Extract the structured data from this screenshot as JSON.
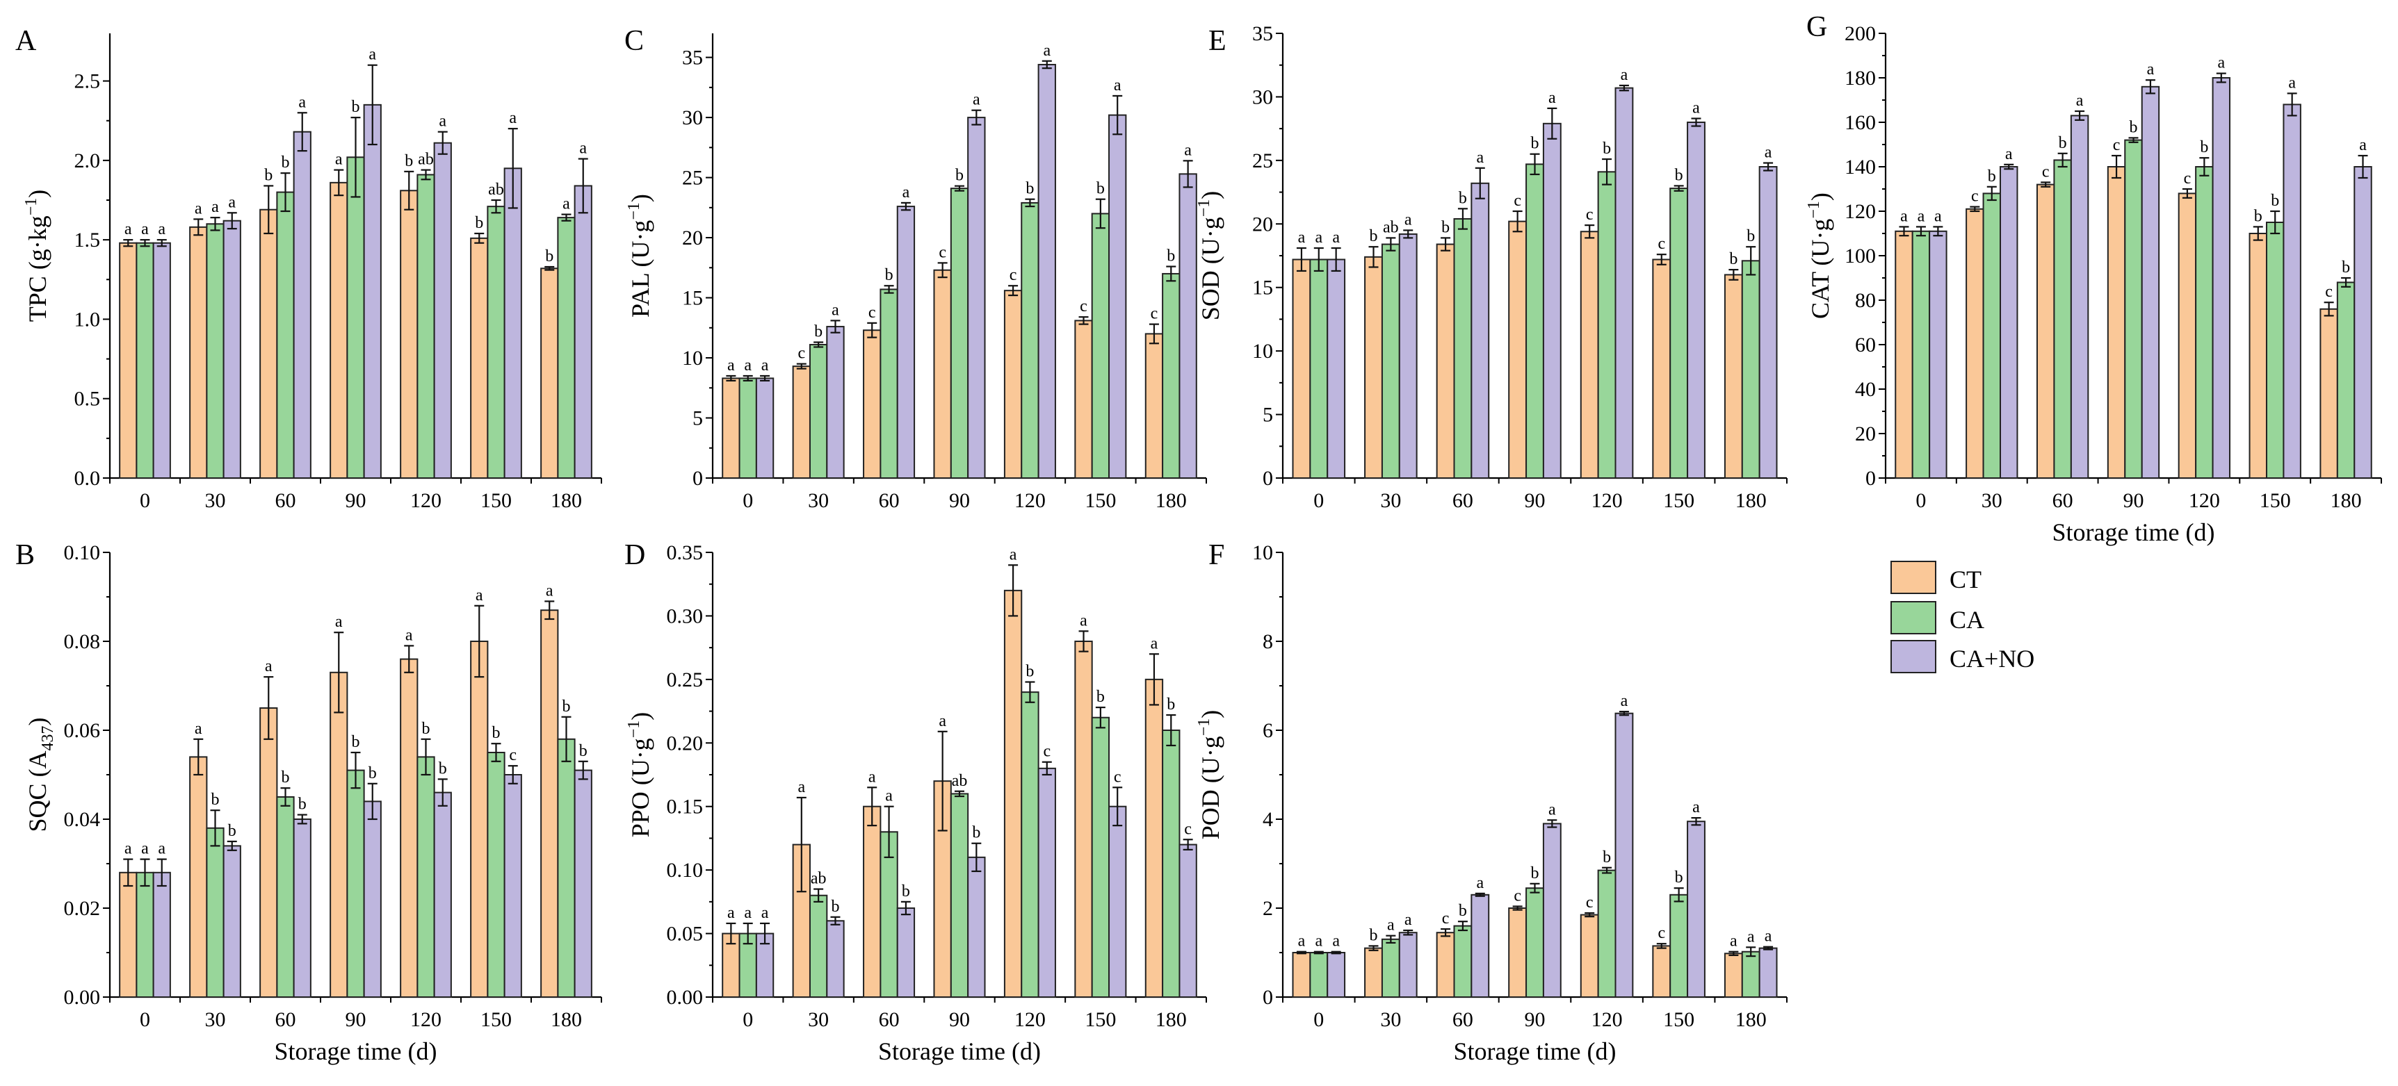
{
  "colors": {
    "CT": "#FAC898",
    "CA": "#98D69A",
    "CA+NO": "#BEB6DE"
  },
  "legend": [
    "CT",
    "CA",
    "CA+NO"
  ],
  "chart_data": [
    {
      "type": "bar",
      "panel": "A",
      "ylabel_main": "TPC (g·kg",
      "ylabel_sup": "−1",
      "ylabel_end": ")",
      "xlabel": "",
      "ylim": [
        0,
        2.8
      ],
      "yticks": [
        0.0,
        0.5,
        1.0,
        1.5,
        2.0,
        2.5
      ],
      "yticklabels": [
        "0.0",
        "0.5",
        "1.0",
        "1.5",
        "2.0",
        "2.5"
      ],
      "categories": [
        "0",
        "30",
        "60",
        "90",
        "120",
        "150",
        "180"
      ],
      "series": [
        {
          "name": "CT",
          "values": [
            1.48,
            1.58,
            1.69,
            1.86,
            1.81,
            1.51,
            1.32
          ],
          "errors": [
            0.02,
            0.05,
            0.15,
            0.08,
            0.12,
            0.03,
            0.01
          ],
          "sig": [
            "a",
            "a",
            "b",
            "a",
            "b",
            "b",
            "b"
          ]
        },
        {
          "name": "CA",
          "values": [
            1.48,
            1.6,
            1.8,
            2.02,
            1.91,
            1.71,
            1.64
          ],
          "errors": [
            0.02,
            0.04,
            0.12,
            0.25,
            0.03,
            0.04,
            0.02
          ],
          "sig": [
            "a",
            "a",
            "b",
            "b",
            "ab",
            "ab",
            "a"
          ]
        },
        {
          "name": "CA+NO",
          "values": [
            1.48,
            1.62,
            2.18,
            2.35,
            2.11,
            1.95,
            1.84
          ],
          "errors": [
            0.02,
            0.05,
            0.12,
            0.25,
            0.07,
            0.25,
            0.17
          ],
          "sig": [
            "a",
            "a",
            "a",
            "a",
            "a",
            "a",
            "a"
          ]
        }
      ]
    },
    {
      "type": "bar",
      "panel": "C",
      "ylabel_main": "PAL (U·g",
      "ylabel_sup": "−1",
      "ylabel_end": ")",
      "xlabel": "",
      "ylim": [
        0,
        37
      ],
      "yticks": [
        0,
        5,
        10,
        15,
        20,
        25,
        30,
        35
      ],
      "yticklabels": [
        "0",
        "5",
        "10",
        "15",
        "20",
        "25",
        "30",
        "35"
      ],
      "categories": [
        "0",
        "30",
        "60",
        "90",
        "120",
        "150",
        "180"
      ],
      "series": [
        {
          "name": "CT",
          "values": [
            8.3,
            9.3,
            12.3,
            17.3,
            15.6,
            13.1,
            12.0
          ],
          "errors": [
            0.2,
            0.2,
            0.6,
            0.6,
            0.4,
            0.3,
            0.8
          ],
          "sig": [
            "a",
            "c",
            "c",
            "c",
            "c",
            "c",
            "c"
          ]
        },
        {
          "name": "CA",
          "values": [
            8.3,
            11.1,
            15.7,
            24.1,
            22.9,
            22.0,
            17.0
          ],
          "errors": [
            0.2,
            0.2,
            0.3,
            0.2,
            0.3,
            1.2,
            0.6
          ],
          "sig": [
            "a",
            "b",
            "b",
            "b",
            "b",
            "b",
            "b"
          ]
        },
        {
          "name": "CA+NO",
          "values": [
            8.3,
            12.6,
            22.6,
            30.0,
            34.4,
            30.2,
            25.3
          ],
          "errors": [
            0.2,
            0.5,
            0.3,
            0.6,
            0.3,
            1.6,
            1.1
          ],
          "sig": [
            "a",
            "a",
            "a",
            "a",
            "a",
            "a",
            "a"
          ]
        }
      ]
    },
    {
      "type": "bar",
      "panel": "E",
      "ylabel_main": "SOD (U·g",
      "ylabel_sup": "−1",
      "ylabel_end": ")",
      "xlabel": "",
      "ylim": [
        0,
        35
      ],
      "yticks": [
        0,
        5,
        10,
        15,
        20,
        25,
        30,
        35
      ],
      "yticklabels": [
        "0",
        "5",
        "10",
        "15",
        "20",
        "25",
        "30",
        "35"
      ],
      "categories": [
        "0",
        "30",
        "60",
        "90",
        "120",
        "150",
        "180"
      ],
      "series": [
        {
          "name": "CT",
          "values": [
            17.2,
            17.4,
            18.4,
            20.2,
            19.4,
            17.2,
            16.0
          ],
          "errors": [
            0.9,
            0.8,
            0.5,
            0.8,
            0.5,
            0.4,
            0.4
          ],
          "sig": [
            "a",
            "b",
            "b",
            "c",
            "c",
            "c",
            "b"
          ]
        },
        {
          "name": "CA",
          "values": [
            17.2,
            18.4,
            20.4,
            24.7,
            24.1,
            22.8,
            17.1
          ],
          "errors": [
            0.9,
            0.5,
            0.8,
            0.8,
            1.0,
            0.2,
            1.1
          ],
          "sig": [
            "a",
            "ab",
            "b",
            "b",
            "b",
            "b",
            "b"
          ]
        },
        {
          "name": "CA+NO",
          "values": [
            17.2,
            19.2,
            23.2,
            27.9,
            30.7,
            28.0,
            24.5
          ],
          "errors": [
            0.9,
            0.3,
            1.2,
            1.2,
            0.2,
            0.3,
            0.3
          ],
          "sig": [
            "a",
            "a",
            "a",
            "a",
            "a",
            "a",
            "a"
          ]
        }
      ]
    },
    {
      "type": "bar",
      "panel": "G",
      "ylabel_main": "CAT (U·g",
      "ylabel_sup": "−1",
      "ylabel_end": ")",
      "xlabel": "Storage time (d)",
      "ylim": [
        0,
        200
      ],
      "yticks": [
        0,
        20,
        40,
        60,
        80,
        100,
        120,
        140,
        160,
        180,
        200
      ],
      "yticklabels": [
        "0",
        "20",
        "40",
        "60",
        "80",
        "100",
        "120",
        "140",
        "160",
        "180",
        "200"
      ],
      "categories": [
        "0",
        "30",
        "60",
        "90",
        "120",
        "150",
        "180"
      ],
      "series": [
        {
          "name": "CT",
          "values": [
            111,
            121,
            132,
            140,
            128,
            110,
            76
          ],
          "errors": [
            2,
            1,
            1,
            5,
            2,
            3,
            3
          ],
          "sig": [
            "a",
            "c",
            "c",
            "c",
            "c",
            "b",
            "c"
          ]
        },
        {
          "name": "CA",
          "values": [
            111,
            128,
            143,
            152,
            140,
            115,
            88
          ],
          "errors": [
            2,
            3,
            3,
            1,
            4,
            5,
            2
          ],
          "sig": [
            "a",
            "b",
            "b",
            "b",
            "b",
            "b",
            "b"
          ]
        },
        {
          "name": "CA+NO",
          "values": [
            111,
            140,
            163,
            176,
            180,
            168,
            140
          ],
          "errors": [
            2,
            1,
            2,
            3,
            2,
            5,
            5
          ],
          "sig": [
            "a",
            "a",
            "a",
            "a",
            "a",
            "a",
            "a"
          ]
        }
      ]
    },
    {
      "type": "bar",
      "panel": "B",
      "ylabel_main": "SQC (A",
      "ylabel_sub": "437",
      "ylabel_end": ")",
      "xlabel": "Storage time (d)",
      "ylim": [
        0,
        0.1
      ],
      "yticks": [
        0.0,
        0.02,
        0.04,
        0.06,
        0.08,
        0.1
      ],
      "yticklabels": [
        "0.00",
        "0.02",
        "0.04",
        "0.06",
        "0.08",
        "0.10"
      ],
      "categories": [
        "0",
        "30",
        "60",
        "90",
        "120",
        "150",
        "180"
      ],
      "series": [
        {
          "name": "CT",
          "values": [
            0.028,
            0.054,
            0.065,
            0.073,
            0.076,
            0.08,
            0.087
          ],
          "errors": [
            0.003,
            0.004,
            0.007,
            0.009,
            0.003,
            0.008,
            0.002
          ],
          "sig": [
            "a",
            "a",
            "a",
            "a",
            "a",
            "a",
            "a"
          ]
        },
        {
          "name": "CA",
          "values": [
            0.028,
            0.038,
            0.045,
            0.051,
            0.054,
            0.055,
            0.058
          ],
          "errors": [
            0.003,
            0.004,
            0.002,
            0.004,
            0.004,
            0.002,
            0.005
          ],
          "sig": [
            "a",
            "b",
            "b",
            "b",
            "b",
            "b",
            "b"
          ]
        },
        {
          "name": "CA+NO",
          "values": [
            0.028,
            0.034,
            0.04,
            0.044,
            0.046,
            0.05,
            0.051
          ],
          "errors": [
            0.003,
            0.001,
            0.001,
            0.004,
            0.003,
            0.002,
            0.002
          ],
          "sig": [
            "a",
            "b",
            "b",
            "b",
            "b",
            "c",
            "b"
          ]
        }
      ]
    },
    {
      "type": "bar",
      "panel": "D",
      "ylabel_main": "PPO (U·g",
      "ylabel_sup": "−1",
      "ylabel_end": ")",
      "xlabel": "Storage time (d)",
      "ylim": [
        0,
        0.35
      ],
      "yticks": [
        0.0,
        0.05,
        0.1,
        0.15,
        0.2,
        0.25,
        0.3,
        0.35
      ],
      "yticklabels": [
        "0.00",
        "0.05",
        "0.10",
        "0.15",
        "0.20",
        "0.25",
        "0.30",
        "0.35"
      ],
      "categories": [
        "0",
        "30",
        "60",
        "90",
        "120",
        "150",
        "180"
      ],
      "series": [
        {
          "name": "CT",
          "values": [
            0.05,
            0.12,
            0.15,
            0.17,
            0.32,
            0.28,
            0.25
          ],
          "errors": [
            0.008,
            0.037,
            0.015,
            0.039,
            0.02,
            0.008,
            0.02
          ],
          "sig": [
            "a",
            "a",
            "a",
            "a",
            "a",
            "a",
            "a"
          ]
        },
        {
          "name": "CA",
          "values": [
            0.05,
            0.08,
            0.13,
            0.16,
            0.24,
            0.22,
            0.21
          ],
          "errors": [
            0.008,
            0.005,
            0.02,
            0.002,
            0.008,
            0.008,
            0.012
          ],
          "sig": [
            "a",
            "ab",
            "a",
            "ab",
            "b",
            "b",
            "b"
          ]
        },
        {
          "name": "CA+NO",
          "values": [
            0.05,
            0.06,
            0.07,
            0.11,
            0.18,
            0.15,
            0.12
          ],
          "errors": [
            0.008,
            0.003,
            0.005,
            0.011,
            0.005,
            0.015,
            0.004
          ],
          "sig": [
            "a",
            "b",
            "b",
            "b",
            "c",
            "c",
            "c"
          ]
        }
      ]
    },
    {
      "type": "bar",
      "panel": "F",
      "ylabel_main": "POD (U·g",
      "ylabel_sup": "−1",
      "ylabel_end": ")",
      "xlabel": "Storage time (d)",
      "ylim": [
        0,
        10
      ],
      "yticks": [
        0,
        2,
        4,
        6,
        8,
        10
      ],
      "yticklabels": [
        "0",
        "2",
        "4",
        "6",
        "8",
        "10"
      ],
      "categories": [
        "0",
        "30",
        "60",
        "90",
        "120",
        "150",
        "180"
      ],
      "series": [
        {
          "name": "CT",
          "values": [
            1.0,
            1.1,
            1.45,
            2.0,
            1.85,
            1.15,
            0.98
          ],
          "errors": [
            0.02,
            0.05,
            0.08,
            0.04,
            0.04,
            0.05,
            0.04
          ],
          "sig": [
            "a",
            "b",
            "c",
            "c",
            "c",
            "c",
            "a"
          ]
        },
        {
          "name": "CA",
          "values": [
            1.0,
            1.3,
            1.6,
            2.45,
            2.85,
            2.3,
            1.02
          ],
          "errors": [
            0.02,
            0.08,
            0.1,
            0.1,
            0.06,
            0.15,
            0.1
          ],
          "sig": [
            "a",
            "a",
            "b",
            "b",
            "b",
            "b",
            "a"
          ]
        },
        {
          "name": "CA+NO",
          "values": [
            1.0,
            1.45,
            2.3,
            3.9,
            6.38,
            3.95,
            1.1
          ],
          "errors": [
            0.02,
            0.05,
            0.03,
            0.08,
            0.04,
            0.08,
            0.03
          ],
          "sig": [
            "a",
            "a",
            "a",
            "a",
            "a",
            "a",
            "a"
          ]
        }
      ]
    }
  ]
}
